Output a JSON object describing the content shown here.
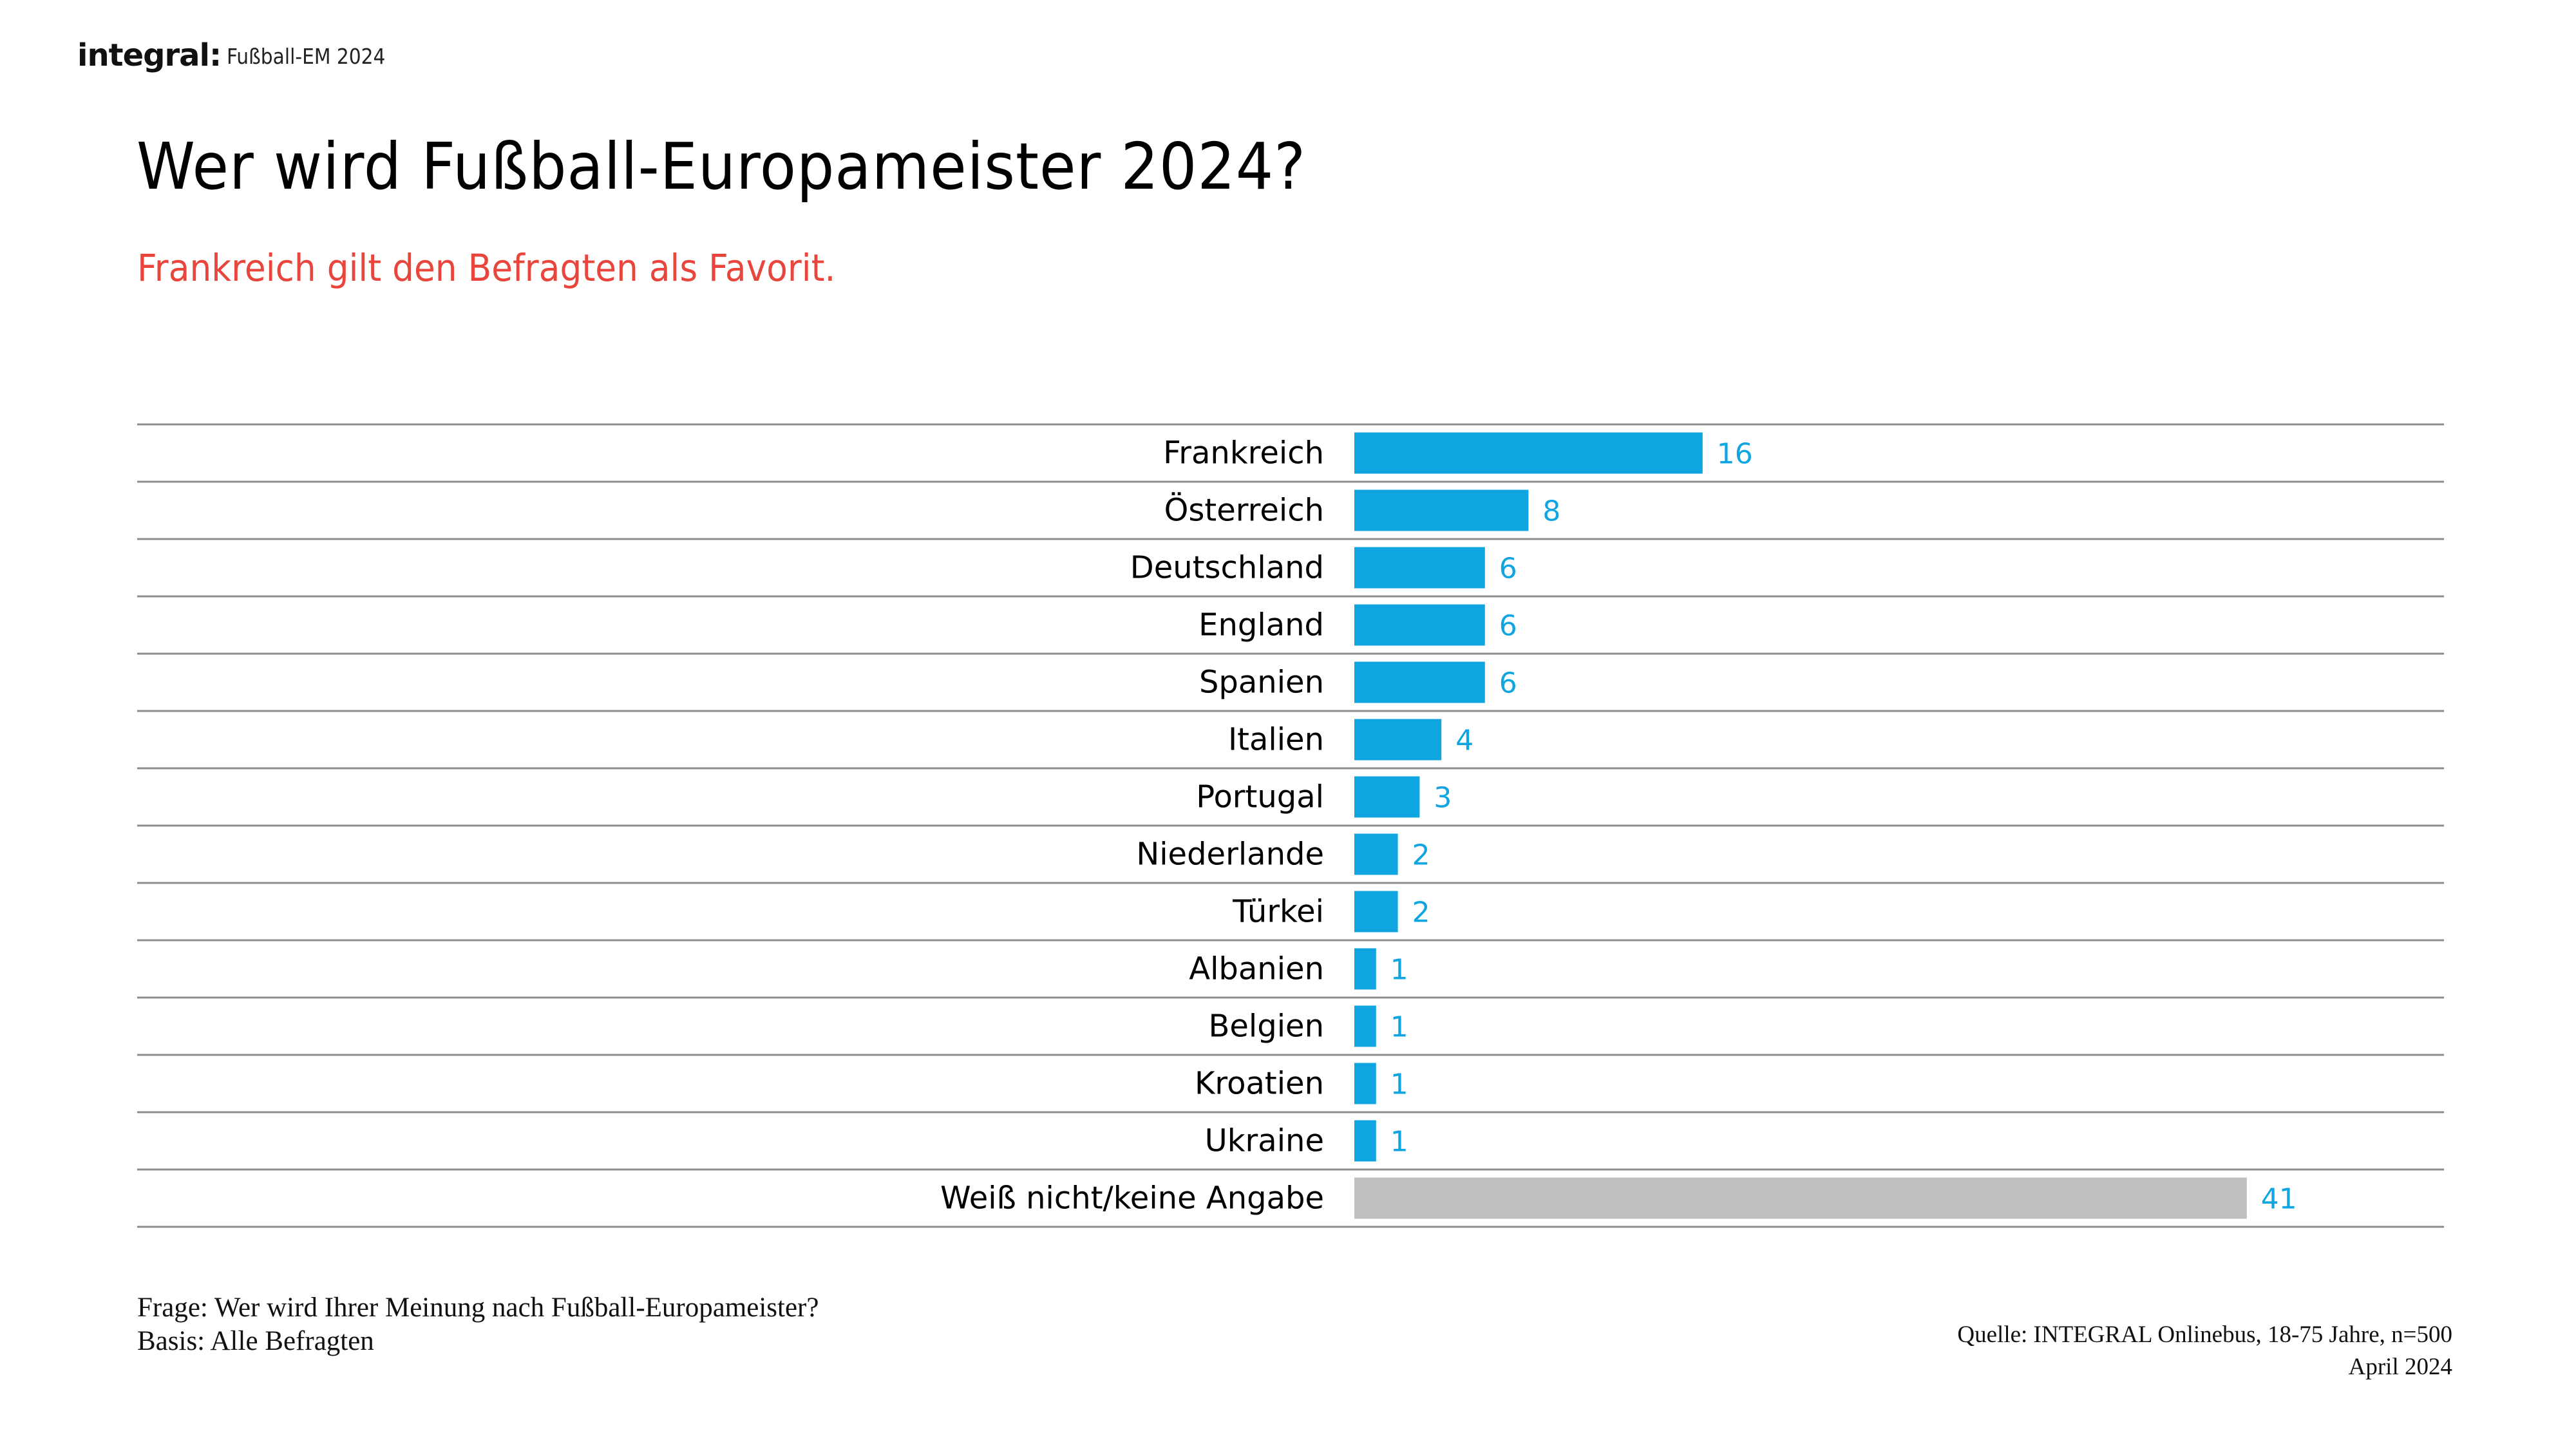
{
  "header": {
    "logo": "integral:",
    "title": "Fußball-EM 2024"
  },
  "title": "Wer wird Fußball-Europameister 2024?",
  "subtitle": "Frankreich gilt den Befragten als Favorit.",
  "colors": {
    "bar": "#0ea5e0",
    "bar_other": "#bfbfbf",
    "value_label": "#0ea5e0",
    "subtitle": "#e8463c",
    "gridline": "#8c8c8c"
  },
  "chart_data": {
    "type": "bar",
    "orientation": "horizontal",
    "title": "Wer wird Fußball-Europameister 2024?",
    "xlabel": "",
    "ylabel": "",
    "unit": "%",
    "xlim": [
      0,
      41
    ],
    "grid": "horizontal row separators",
    "categories": [
      "Frankreich",
      "Österreich",
      "Deutschland",
      "England",
      "Spanien",
      "Italien",
      "Portugal",
      "Niederlande",
      "Türkei",
      "Albanien",
      "Belgien",
      "Kroatien",
      "Ukraine",
      "Weiß nicht/keine Angabe"
    ],
    "values": [
      16,
      8,
      6,
      6,
      6,
      4,
      3,
      2,
      2,
      1,
      1,
      1,
      1,
      41
    ],
    "highlight": [
      false,
      false,
      false,
      false,
      false,
      false,
      false,
      false,
      false,
      false,
      false,
      false,
      false,
      true
    ]
  },
  "footer": {
    "question": "Frage: Wer wird Ihrer Meinung nach Fußball-Europameister?",
    "basis": "Basis: Alle Befragten",
    "source": "Quelle: INTEGRAL Onlinebus, 18-75 Jahre, n=500",
    "date": "April 2024"
  }
}
